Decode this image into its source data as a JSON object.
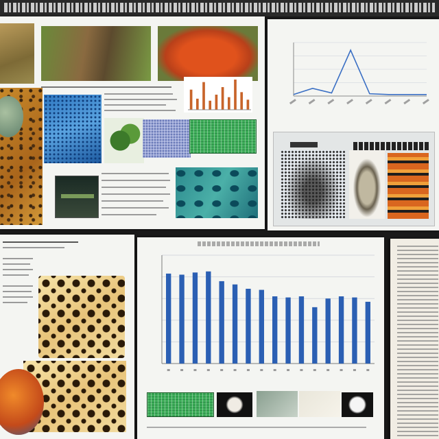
{
  "banner": {
    "title": ""
  },
  "top_chart": {
    "title": "",
    "x_caption": "",
    "chart_data": {
      "type": "line",
      "title": "",
      "x": [
        "1",
        "2",
        "3",
        "4",
        "5",
        "6",
        "7",
        "8"
      ],
      "series": [
        {
          "values": [
            2,
            10,
            4,
            60,
            3,
            2,
            2,
            2
          ]
        }
      ],
      "ylim": [
        0,
        70
      ],
      "grid": true
    }
  },
  "bar_chart": {
    "title": "",
    "x_caption": "",
    "chart_data": {
      "type": "bar",
      "title": "",
      "xlabel": "",
      "ylabel": "",
      "categories": [
        "1",
        "2",
        "3",
        "4",
        "5",
        "6",
        "7",
        "8",
        "9",
        "10",
        "11",
        "12",
        "13",
        "14",
        "15",
        "16"
      ],
      "values": [
        83,
        82,
        84,
        85,
        76,
        73,
        69,
        68,
        62,
        61,
        62,
        52,
        60,
        62,
        61,
        57
      ],
      "ylim": [
        0,
        100
      ],
      "grid": true,
      "colors": {
        "bar": "#2b5fb3",
        "grid": "#d6d9de"
      }
    }
  },
  "mini_chart": {
    "chart_data": {
      "type": "bar",
      "categories": [
        "1",
        "2",
        "3",
        "4",
        "5",
        "6",
        "7",
        "8",
        "9",
        "10"
      ],
      "values": [
        40,
        22,
        55,
        18,
        30,
        45,
        25,
        60,
        35,
        20
      ],
      "colors": {
        "bar": "#c8642a"
      }
    }
  },
  "colors": {
    "background": "#1b1b1b",
    "paper": "#f4f5f2",
    "accent_blue": "#2b5fb3",
    "line_blue": "#3a6fc4"
  }
}
